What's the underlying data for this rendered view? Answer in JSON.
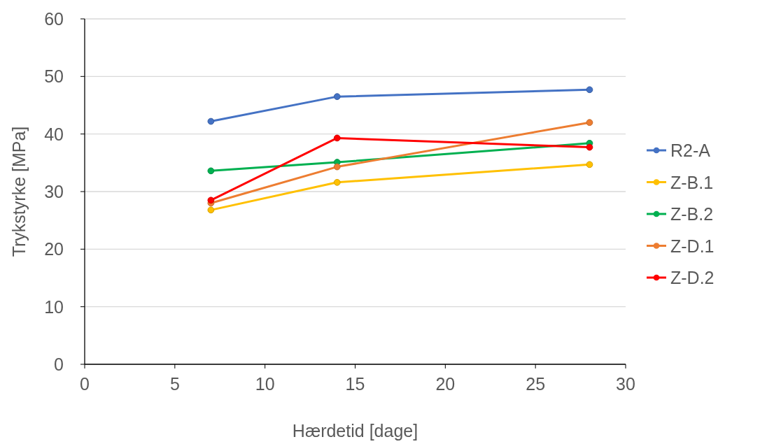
{
  "chart_data": {
    "type": "line",
    "xlabel": "Hærdetid [dage]",
    "ylabel": "Trykstyrke [MPa]",
    "x": [
      7,
      14,
      28
    ],
    "xlim": [
      0,
      30
    ],
    "xticks": [
      0,
      5,
      10,
      15,
      20,
      25,
      30
    ],
    "ylim": [
      0,
      60
    ],
    "yticks": [
      0,
      10,
      20,
      30,
      40,
      50,
      60
    ],
    "grid": "y",
    "legend": "right",
    "marker": "circle",
    "series": [
      {
        "name": "R2-A",
        "color": "#4472c4",
        "values": [
          42.2,
          46.5,
          47.7
        ]
      },
      {
        "name": "Z-B.1",
        "color": "#ffc000",
        "values": [
          26.8,
          31.6,
          34.7
        ]
      },
      {
        "name": "Z-B.2",
        "color": "#00b050",
        "values": [
          33.6,
          35.1,
          38.4
        ]
      },
      {
        "name": "Z-D.1",
        "color": "#ed7d31",
        "values": [
          28.0,
          34.3,
          42.0
        ]
      },
      {
        "name": "Z-D.2",
        "color": "#ff0000",
        "values": [
          28.5,
          39.3,
          37.7
        ]
      }
    ]
  }
}
